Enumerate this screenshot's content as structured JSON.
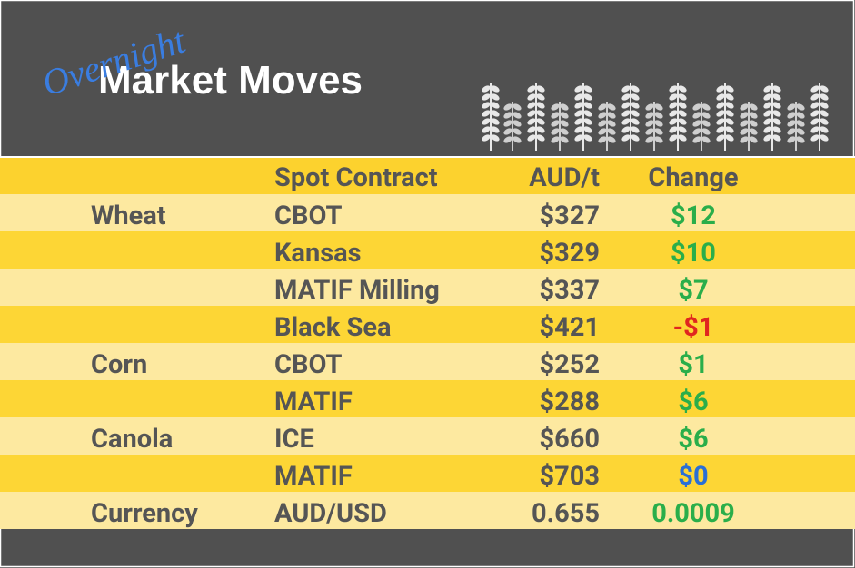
{
  "header": {
    "script": "Overnight",
    "title": "Market Moves"
  },
  "table": {
    "columns": [
      "Spot Contract",
      "AUD/t",
      "Change"
    ],
    "rows": [
      {
        "group": "Wheat",
        "contract": "CBOT",
        "price": "$327",
        "change": "$12",
        "change_color": "#2aae4a"
      },
      {
        "contract": "Kansas",
        "price": "$329",
        "change": "$10",
        "change_color": "#2aae4a"
      },
      {
        "contract": "MATIF Milling",
        "price": "$337",
        "change": "$7",
        "change_color": "#2aae4a"
      },
      {
        "contract": "Black Sea",
        "price": "$421",
        "change": "-$1",
        "change_color": "#e0261f"
      },
      {
        "group": "Corn",
        "contract": "CBOT",
        "price": "$252",
        "change": "$1",
        "change_color": "#2aae4a"
      },
      {
        "contract": "MATIF",
        "price": "$288",
        "change": "$6",
        "change_color": "#2aae4a"
      },
      {
        "group": "Canola",
        "contract": "ICE",
        "price": "$660",
        "change": "$6",
        "change_color": "#2aae4a"
      },
      {
        "contract": "MATIF",
        "price": "$703",
        "change": "$0",
        "change_color": "#2a6fd6"
      },
      {
        "group": "Currency",
        "contract": "AUD/USD",
        "price": "0.655",
        "change": "0.0009",
        "change_color": "#2aae4a"
      }
    ]
  }
}
